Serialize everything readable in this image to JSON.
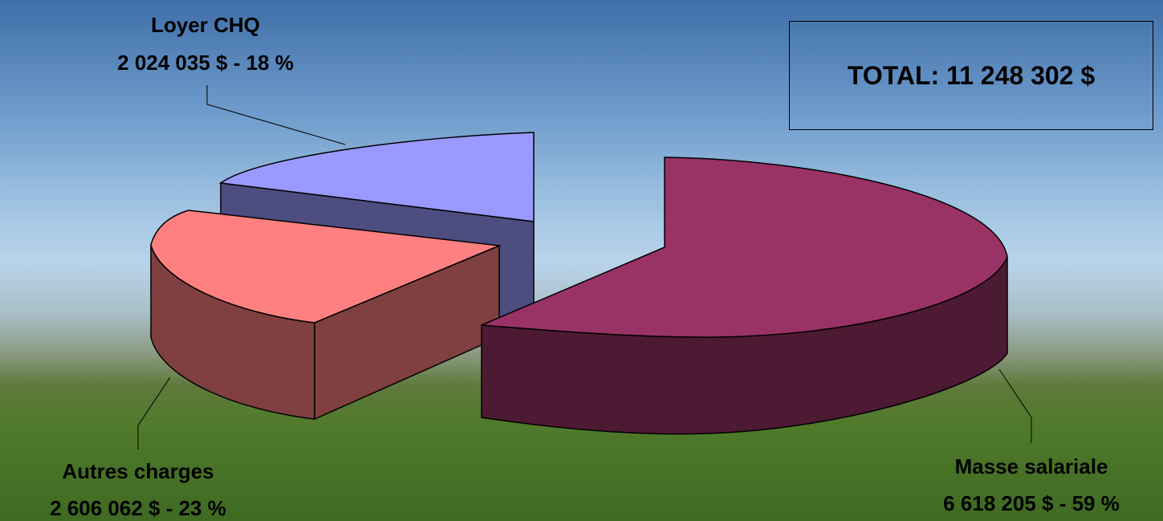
{
  "chart_data": {
    "type": "pie",
    "title": "",
    "total_label": "TOTAL: 11 248 302 $",
    "slices": [
      {
        "name": "Loyer CHQ",
        "value": 2024035,
        "percent": 18,
        "value_label": "2 024 035 $ - 18 %",
        "top_color": "#9999ff",
        "side_color": "#4d4d80"
      },
      {
        "name": "Autres charges",
        "value": 2606062,
        "percent": 23,
        "value_label": "2 606 062 $ - 23 %",
        "top_color": "#ff8080",
        "side_color": "#804040"
      },
      {
        "name": "Masse salariale",
        "value": 6618205,
        "percent": 59,
        "value_label": "6 618 205 $ - 59 %",
        "top_color": "#993366",
        "side_color": "#4d1a33"
      }
    ]
  }
}
